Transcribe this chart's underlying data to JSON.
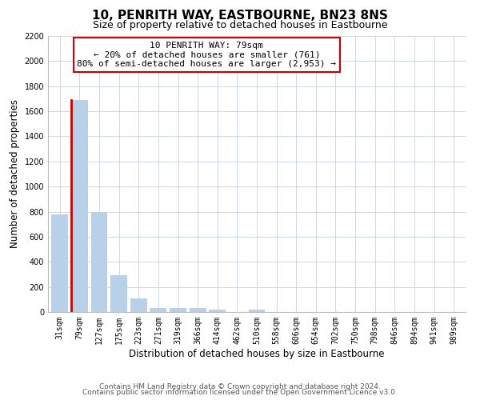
{
  "title": "10, PENRITH WAY, EASTBOURNE, BN23 8NS",
  "subtitle": "Size of property relative to detached houses in Eastbourne",
  "xlabel": "Distribution of detached houses by size in Eastbourne",
  "ylabel": "Number of detached properties",
  "bar_labels": [
    "31sqm",
    "79sqm",
    "127sqm",
    "175sqm",
    "223sqm",
    "271sqm",
    "319sqm",
    "366sqm",
    "414sqm",
    "462sqm",
    "510sqm",
    "558sqm",
    "606sqm",
    "654sqm",
    "702sqm",
    "750sqm",
    "798sqm",
    "846sqm",
    "894sqm",
    "941sqm",
    "989sqm"
  ],
  "bar_values": [
    780,
    1690,
    795,
    295,
    110,
    35,
    30,
    30,
    20,
    0,
    20,
    0,
    0,
    0,
    0,
    0,
    0,
    0,
    0,
    0,
    0
  ],
  "bar_color": "#b8d0e8",
  "highlight_bar_index": 1,
  "highlight_bar_color": "#cc0000",
  "ylim": [
    0,
    2200
  ],
  "yticks": [
    0,
    200,
    400,
    600,
    800,
    1000,
    1200,
    1400,
    1600,
    1800,
    2000,
    2200
  ],
  "annotation_line1": "10 PENRITH WAY: 79sqm",
  "annotation_line2": "← 20% of detached houses are smaller (761)",
  "annotation_line3": "80% of semi-detached houses are larger (2,953) →",
  "footer_line1": "Contains HM Land Registry data © Crown copyright and database right 2024.",
  "footer_line2": "Contains public sector information licensed under the Open Government Licence v3.0.",
  "grid_color": "#ccd8e8",
  "background_color": "#ffffff",
  "title_fontsize": 11,
  "subtitle_fontsize": 9,
  "axis_label_fontsize": 8.5,
  "tick_fontsize": 7,
  "annotation_fontsize": 8,
  "footer_fontsize": 6.5
}
